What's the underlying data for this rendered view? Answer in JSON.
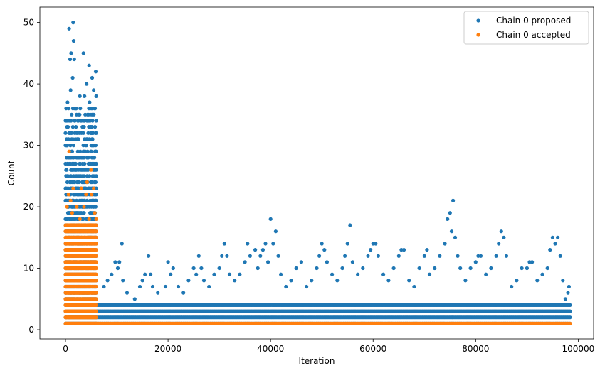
{
  "chart_data": {
    "type": "scatter",
    "title": "",
    "xlabel": "Iteration",
    "ylabel": "Count",
    "xlim": [
      -5000,
      103000
    ],
    "ylim": [
      -1.5,
      52.5
    ],
    "xticks": [
      0,
      20000,
      40000,
      60000,
      80000,
      100000
    ],
    "xtick_labels": [
      "0",
      "20000",
      "40000",
      "60000",
      "80000",
      "100000"
    ],
    "yticks": [
      0,
      10,
      20,
      30,
      40,
      50
    ],
    "ytick_labels": [
      "0",
      "10",
      "20",
      "30",
      "40",
      "50"
    ],
    "grid": false,
    "legend_position": "top-right",
    "series": [
      {
        "name": "Chain 0 proposed",
        "color": "#1f77b4",
        "description_of_data": "dense bands",
        "bands": [
          {
            "x_start": 0,
            "x_end": 6000,
            "y_min": 1,
            "y_max": 36
          },
          {
            "x_start": 6000,
            "x_end": 98500,
            "y_min": 1,
            "y_max": 4
          }
        ],
        "points": [
          [
            700,
            49
          ],
          [
            1500,
            50
          ],
          [
            1600,
            47
          ],
          [
            1100,
            45
          ],
          [
            3500,
            45
          ],
          [
            900,
            44
          ],
          [
            1700,
            44
          ],
          [
            4600,
            43
          ],
          [
            5200,
            41
          ],
          [
            5900,
            42
          ],
          [
            1400,
            41
          ],
          [
            4100,
            40
          ],
          [
            1000,
            39
          ],
          [
            3700,
            38
          ],
          [
            2800,
            38
          ],
          [
            5500,
            39
          ],
          [
            6000,
            38
          ],
          [
            400,
            37
          ],
          [
            4700,
            37
          ],
          [
            2100,
            36
          ],
          [
            5700,
            36
          ],
          [
            300,
            33
          ],
          [
            1800,
            34
          ],
          [
            2600,
            35
          ],
          [
            4300,
            34
          ],
          [
            800,
            32
          ],
          [
            3300,
            33
          ],
          [
            5000,
            32
          ],
          [
            200,
            30
          ],
          [
            1200,
            31
          ],
          [
            2400,
            29
          ],
          [
            3900,
            30
          ],
          [
            5800,
            29
          ],
          [
            600,
            28
          ],
          [
            2000,
            27
          ],
          [
            3100,
            28
          ],
          [
            4500,
            27
          ],
          [
            5400,
            26
          ],
          [
            11000,
            14
          ],
          [
            10500,
            11
          ],
          [
            9700,
            11
          ],
          [
            10200,
            10
          ],
          [
            9000,
            9
          ],
          [
            8200,
            8
          ],
          [
            7500,
            7
          ],
          [
            11200,
            8
          ],
          [
            12000,
            6
          ],
          [
            13500,
            5
          ],
          [
            14500,
            7
          ],
          [
            15000,
            8
          ],
          [
            15500,
            9
          ],
          [
            16200,
            12
          ],
          [
            16600,
            9
          ],
          [
            17000,
            7
          ],
          [
            18000,
            6
          ],
          [
            19500,
            7
          ],
          [
            20000,
            11
          ],
          [
            20500,
            9
          ],
          [
            21000,
            10
          ],
          [
            22000,
            7
          ],
          [
            23000,
            6
          ],
          [
            24000,
            8
          ],
          [
            25000,
            10
          ],
          [
            25500,
            9
          ],
          [
            26000,
            12
          ],
          [
            26500,
            10
          ],
          [
            27000,
            8
          ],
          [
            28000,
            7
          ],
          [
            29000,
            9
          ],
          [
            30000,
            10
          ],
          [
            30500,
            12
          ],
          [
            31000,
            14
          ],
          [
            31500,
            12
          ],
          [
            32000,
            9
          ],
          [
            33000,
            8
          ],
          [
            34000,
            9
          ],
          [
            35000,
            11
          ],
          [
            35500,
            14
          ],
          [
            36000,
            12
          ],
          [
            37000,
            13
          ],
          [
            37500,
            10
          ],
          [
            38000,
            12
          ],
          [
            38500,
            13
          ],
          [
            39000,
            14
          ],
          [
            39500,
            11
          ],
          [
            40000,
            18
          ],
          [
            40500,
            14
          ],
          [
            41000,
            16
          ],
          [
            41500,
            12
          ],
          [
            42000,
            9
          ],
          [
            43000,
            7
          ],
          [
            44000,
            8
          ],
          [
            45000,
            10
          ],
          [
            46000,
            11
          ],
          [
            47000,
            7
          ],
          [
            48000,
            8
          ],
          [
            49000,
            10
          ],
          [
            49500,
            12
          ],
          [
            50000,
            14
          ],
          [
            50500,
            13
          ],
          [
            51000,
            11
          ],
          [
            52000,
            9
          ],
          [
            53000,
            8
          ],
          [
            54000,
            10
          ],
          [
            54500,
            12
          ],
          [
            55000,
            14
          ],
          [
            55500,
            17
          ],
          [
            56000,
            11
          ],
          [
            57000,
            9
          ],
          [
            58000,
            10
          ],
          [
            59000,
            12
          ],
          [
            59500,
            13
          ],
          [
            60000,
            14
          ],
          [
            60500,
            14
          ],
          [
            61000,
            12
          ],
          [
            62000,
            9
          ],
          [
            63000,
            8
          ],
          [
            64000,
            10
          ],
          [
            65000,
            12
          ],
          [
            65500,
            13
          ],
          [
            66000,
            13
          ],
          [
            67000,
            8
          ],
          [
            68000,
            7
          ],
          [
            69000,
            10
          ],
          [
            70000,
            12
          ],
          [
            70500,
            13
          ],
          [
            71000,
            9
          ],
          [
            72000,
            10
          ],
          [
            73000,
            12
          ],
          [
            74000,
            14
          ],
          [
            74500,
            18
          ],
          [
            75000,
            19
          ],
          [
            75300,
            16
          ],
          [
            75600,
            21
          ],
          [
            76000,
            15
          ],
          [
            76500,
            12
          ],
          [
            77000,
            10
          ],
          [
            78000,
            8
          ],
          [
            79000,
            10
          ],
          [
            80000,
            11
          ],
          [
            80500,
            12
          ],
          [
            81000,
            12
          ],
          [
            82000,
            9
          ],
          [
            83000,
            10
          ],
          [
            84000,
            12
          ],
          [
            84500,
            14
          ],
          [
            85000,
            16
          ],
          [
            85500,
            15
          ],
          [
            86000,
            12
          ],
          [
            87000,
            7
          ],
          [
            88000,
            8
          ],
          [
            89000,
            10
          ],
          [
            90000,
            10
          ],
          [
            90500,
            11
          ],
          [
            91000,
            11
          ],
          [
            92000,
            8
          ],
          [
            93000,
            9
          ],
          [
            94000,
            10
          ],
          [
            94500,
            13
          ],
          [
            95000,
            15
          ],
          [
            95500,
            14
          ],
          [
            96000,
            15
          ],
          [
            96500,
            12
          ],
          [
            97000,
            8
          ],
          [
            97500,
            5
          ],
          [
            98000,
            6
          ],
          [
            98200,
            7
          ]
        ]
      },
      {
        "name": "Chain 0 accepted",
        "color": "#ff7f0e",
        "description_of_data": "dense band",
        "bands": [
          {
            "x_start": 0,
            "x_end": 6000,
            "y_min": 1,
            "y_max": 17
          },
          {
            "x_start": 6000,
            "x_end": 98500,
            "y_min": 1,
            "y_max": 1
          }
        ],
        "points": [
          [
            700,
            29
          ],
          [
            5000,
            26
          ],
          [
            4200,
            24
          ],
          [
            600,
            22
          ],
          [
            1500,
            23
          ],
          [
            3100,
            23
          ],
          [
            5500,
            23
          ],
          [
            1000,
            21
          ],
          [
            4000,
            22
          ],
          [
            5100,
            22
          ],
          [
            300,
            20
          ],
          [
            2200,
            20
          ],
          [
            3600,
            20
          ],
          [
            5700,
            19
          ],
          [
            1300,
            19
          ],
          [
            2800,
            18
          ],
          [
            4600,
            18
          ],
          [
            6000,
            18
          ]
        ]
      }
    ]
  }
}
